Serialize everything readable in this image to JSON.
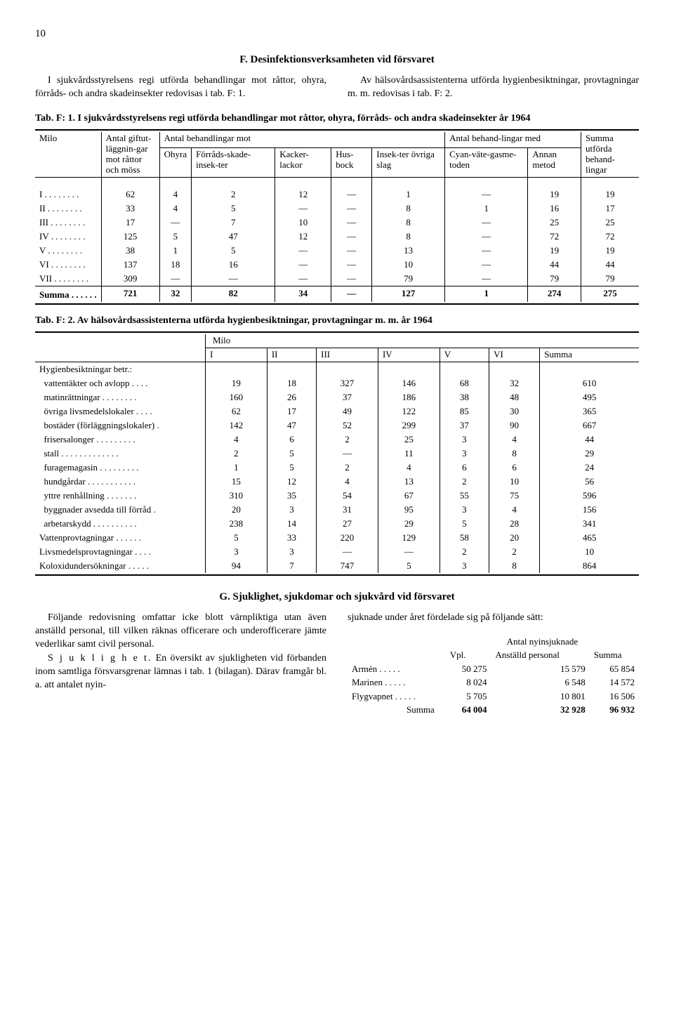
{
  "page_number": "10",
  "section_f": {
    "heading": "F. Desinfektionsverksamheten vid försvaret",
    "left_para": "I sjukvårdsstyrelsens regi utförda behandlingar mot råttor, ohyra, förråds- och andra skadeinsekter redovisas i tab. F: 1.",
    "right_para": "Av hälsovårdsassistenterna utförda hygienbesiktningar, provtagningar m. m. redovisas i tab. F: 2."
  },
  "table_f1": {
    "caption": "Tab. F: 1. I sjukvårdsstyrelsens regi utförda behandlingar mot råttor, ohyra, förråds- och andra skadeinsekter år 1964",
    "headers": {
      "milo": "Milo",
      "antal_gift": "Antal giftut-läggnin-gar mot råttor och möss",
      "antal_beh_mot": "Antal behandlingar mot",
      "ohyra": "Ohyra",
      "forrads": "Förråds-skade-insek-ter",
      "kacker": "Kacker-lackor",
      "husbock": "Hus-bock",
      "insekter": "Insek-ter övriga slag",
      "antal_beh_med": "Antal behand-lingar med",
      "cyan": "Cyan-väte-gasme-toden",
      "annan": "Annan metod",
      "summa": "Summa utförda behand-lingar"
    },
    "rows": [
      {
        "m": "I",
        "g": "62",
        "o": "4",
        "f": "2",
        "k": "12",
        "h": "—",
        "i": "1",
        "c": "—",
        "a": "19",
        "s": "19"
      },
      {
        "m": "II",
        "g": "33",
        "o": "4",
        "f": "5",
        "k": "—",
        "h": "—",
        "i": "8",
        "c": "1",
        "a": "16",
        "s": "17"
      },
      {
        "m": "III",
        "g": "17",
        "o": "—",
        "f": "7",
        "k": "10",
        "h": "—",
        "i": "8",
        "c": "—",
        "a": "25",
        "s": "25"
      },
      {
        "m": "IV",
        "g": "125",
        "o": "5",
        "f": "47",
        "k": "12",
        "h": "—",
        "i": "8",
        "c": "—",
        "a": "72",
        "s": "72"
      },
      {
        "m": "V",
        "g": "38",
        "o": "1",
        "f": "5",
        "k": "—",
        "h": "—",
        "i": "13",
        "c": "—",
        "a": "19",
        "s": "19"
      },
      {
        "m": "VI",
        "g": "137",
        "o": "18",
        "f": "16",
        "k": "—",
        "h": "—",
        "i": "10",
        "c": "—",
        "a": "44",
        "s": "44"
      },
      {
        "m": "VII",
        "g": "309",
        "o": "—",
        "f": "—",
        "k": "—",
        "h": "—",
        "i": "79",
        "c": "—",
        "a": "79",
        "s": "79"
      }
    ],
    "sum_label": "Summa",
    "sum": {
      "g": "721",
      "o": "32",
      "f": "82",
      "k": "34",
      "h": "—",
      "i": "127",
      "c": "1",
      "a": "274",
      "s": "275"
    }
  },
  "table_f2": {
    "caption": "Tab. F: 2. Av hälsovårdsassistenterna utförda hygienbesiktningar, provtagningar m. m. år 1964",
    "milo_label": "Milo",
    "cols": [
      "I",
      "II",
      "III",
      "IV",
      "V",
      "VI",
      "Summa"
    ],
    "group1_label": "Hygienbesiktningar betr.:",
    "rows": [
      {
        "l": "vattentäkter och avlopp",
        "v": [
          "19",
          "18",
          "327",
          "146",
          "68",
          "32",
          "610"
        ]
      },
      {
        "l": "matinrättningar",
        "v": [
          "160",
          "26",
          "37",
          "186",
          "38",
          "48",
          "495"
        ]
      },
      {
        "l": "övriga livsmedelslokaler",
        "v": [
          "62",
          "17",
          "49",
          "122",
          "85",
          "30",
          "365"
        ]
      },
      {
        "l": "bostäder (förläggningslokaler)",
        "v": [
          "142",
          "47",
          "52",
          "299",
          "37",
          "90",
          "667"
        ]
      },
      {
        "l": "frisersalonger",
        "v": [
          "4",
          "6",
          "2",
          "25",
          "3",
          "4",
          "44"
        ]
      },
      {
        "l": "stall",
        "v": [
          "2",
          "5",
          "—",
          "11",
          "3",
          "8",
          "29"
        ]
      },
      {
        "l": "furagemagasin",
        "v": [
          "1",
          "5",
          "2",
          "4",
          "6",
          "6",
          "24"
        ]
      },
      {
        "l": "hundgårdar",
        "v": [
          "15",
          "12",
          "4",
          "13",
          "2",
          "10",
          "56"
        ]
      },
      {
        "l": "yttre renhållning",
        "v": [
          "310",
          "35",
          "54",
          "67",
          "55",
          "75",
          "596"
        ]
      },
      {
        "l": "byggnader avsedda till förråd",
        "v": [
          "20",
          "3",
          "31",
          "95",
          "3",
          "4",
          "156"
        ]
      },
      {
        "l": "arbetarskydd",
        "v": [
          "238",
          "14",
          "27",
          "29",
          "5",
          "28",
          "341"
        ]
      },
      {
        "l": "Vattenprovtagningar",
        "v": [
          "5",
          "33",
          "220",
          "129",
          "58",
          "20",
          "465"
        ],
        "noindent": true
      },
      {
        "l": "Livsmedelsprovtagningar",
        "v": [
          "3",
          "3",
          "—",
          "—",
          "2",
          "2",
          "10"
        ],
        "noindent": true
      },
      {
        "l": "Koloxidundersökningar",
        "v": [
          "94",
          "7",
          "747",
          "5",
          "3",
          "8",
          "864"
        ],
        "noindent": true
      }
    ]
  },
  "section_g": {
    "heading": "G. Sjuklighet, sjukdomar och sjukvård vid försvaret",
    "left_p1": "Följande redovisning omfattar icke blott värnpliktiga utan även anställd personal, till vilken räknas officerare och underofficerare jämte vederlikar samt civil personal.",
    "left_p2_lead": "S j u k l i g h e t.",
    "left_p2_rest": " En översikt av sjukligheten vid förbanden inom samtliga försvarsgrenar lämnas i tab. 1 (bilagan). Därav framgår bl. a. att antalet nyin-",
    "right_p1": "sjuknade under året fördelade sig på följande sätt:",
    "mini_header_main": "Antal nyinsjuknade",
    "mini_cols": {
      "vpl": "Vpl.",
      "anst": "Anställd personal",
      "sum": "Summa"
    },
    "mini_rows": [
      {
        "l": "Armén",
        "v": [
          "50 275",
          "15 579",
          "65 854"
        ]
      },
      {
        "l": "Marinen",
        "v": [
          "8 024",
          "6 548",
          "14 572"
        ]
      },
      {
        "l": "Flygvapnet",
        "v": [
          "5 705",
          "10 801",
          "16 506"
        ]
      }
    ],
    "mini_sum_label": "Summa",
    "mini_sum": [
      "64 004",
      "32 928",
      "96 932"
    ]
  }
}
